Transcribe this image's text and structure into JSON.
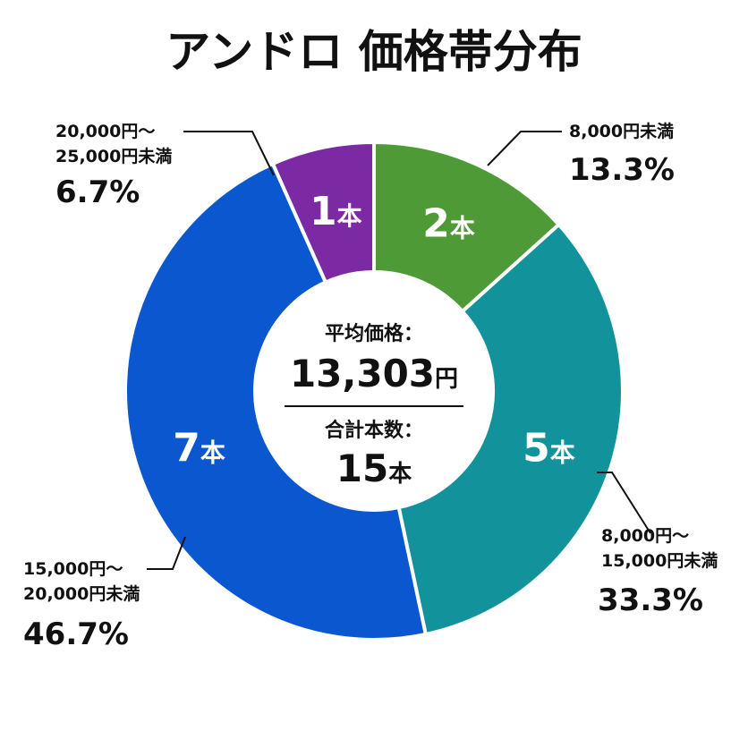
{
  "chart_data": {
    "type": "pie",
    "title": "アンドロ 価格帯分布",
    "unit": "本",
    "categories": [
      "8,000円未満",
      "8,000円〜15,000円未満",
      "15,000円〜20,000円未満",
      "20,000円〜25,000円未満"
    ],
    "range_lines": [
      [
        "8,000円未満"
      ],
      [
        "8,000円〜",
        "15,000円未満"
      ],
      [
        "15,000円〜",
        "20,000円未満"
      ],
      [
        "20,000円〜",
        "25,000円未満"
      ]
    ],
    "values": [
      2,
      5,
      7,
      1
    ],
    "percentages": [
      "13.3%",
      "33.3%",
      "46.7%",
      "6.7%"
    ],
    "colors": [
      "#4e9a36",
      "#12939c",
      "#0a57d0",
      "#7b2aa4"
    ],
    "center": {
      "avg_label": "平均価格：",
      "avg_value": "13,303",
      "avg_unit": "円",
      "total_label": "合計本数：",
      "total_value": "15",
      "total_unit": "本"
    }
  }
}
